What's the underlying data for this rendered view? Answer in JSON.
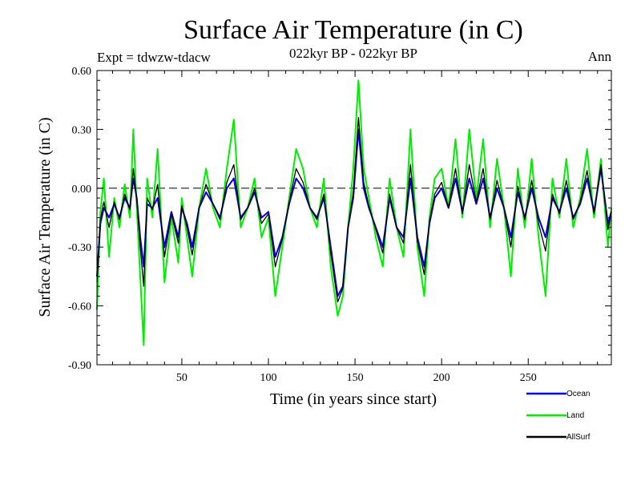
{
  "chart_data": {
    "type": "line",
    "title": "Surface Air Temperature (in C)",
    "subtitle": "022kyr BP - 022kyr BP",
    "expt_label": "Expt = tdwzw-tdacw",
    "season_label": "Ann",
    "xlabel": "Time (in years since start)",
    "ylabel": "Surface Air Temperature (in C)",
    "xlim": [
      1,
      298
    ],
    "ylim": [
      -0.9,
      0.6
    ],
    "x_ticks": [
      50,
      100,
      150,
      200,
      250
    ],
    "x_tick_labels": [
      "50",
      "100",
      "150",
      "200",
      "250"
    ],
    "y_ticks": [
      -0.9,
      -0.6,
      -0.3,
      0.0,
      0.3,
      0.6
    ],
    "y_tick_labels": [
      "-0.90",
      "-0.60",
      "-0.30",
      "0.00",
      "0.30",
      "0.60"
    ],
    "zero_line": "dashed",
    "legend_position": "bottom-right",
    "series": [
      {
        "name": "Land",
        "color": "#00ee00",
        "x": [
          1,
          3,
          5,
          8,
          11,
          14,
          17,
          20,
          22,
          24,
          26,
          28,
          30,
          33,
          36,
          40,
          44,
          48,
          50,
          53,
          56,
          60,
          64,
          68,
          72,
          76,
          80,
          84,
          88,
          92,
          96,
          100,
          104,
          108,
          112,
          116,
          120,
          124,
          128,
          132,
          136,
          140,
          143,
          146,
          149,
          152,
          155,
          158,
          162,
          166,
          170,
          174,
          178,
          182,
          186,
          190,
          193,
          196,
          200,
          204,
          208,
          212,
          216,
          220,
          224,
          228,
          232,
          236,
          240,
          244,
          248,
          252,
          256,
          260,
          264,
          268,
          272,
          276,
          280,
          284,
          288,
          292,
          296,
          298
        ],
        "values": [
          -0.62,
          -0.12,
          0.05,
          -0.35,
          -0.05,
          -0.2,
          0.02,
          -0.15,
          0.3,
          -0.1,
          -0.45,
          -0.8,
          0.05,
          -0.15,
          0.2,
          -0.48,
          -0.15,
          -0.38,
          -0.05,
          -0.25,
          -0.45,
          -0.1,
          0.1,
          -0.1,
          -0.2,
          0.1,
          0.35,
          -0.2,
          -0.1,
          0.05,
          -0.25,
          -0.15,
          -0.55,
          -0.3,
          -0.05,
          0.2,
          0.1,
          -0.1,
          -0.2,
          0.05,
          -0.4,
          -0.65,
          -0.55,
          -0.2,
          0.1,
          0.55,
          0.1,
          -0.05,
          -0.25,
          -0.4,
          0.05,
          -0.2,
          -0.35,
          0.3,
          -0.3,
          -0.55,
          -0.15,
          0.05,
          0.1,
          -0.1,
          0.25,
          -0.15,
          0.3,
          -0.05,
          0.25,
          -0.2,
          0.15,
          -0.1,
          -0.45,
          0.1,
          -0.2,
          0.15,
          -0.25,
          -0.55,
          0.05,
          -0.15,
          0.15,
          -0.2,
          -0.05,
          0.2,
          -0.15,
          0.15,
          -0.3,
          -0.1
        ]
      },
      {
        "name": "Ocean",
        "color": "#0000dd",
        "x": [
          1,
          3,
          5,
          8,
          11,
          14,
          17,
          20,
          22,
          24,
          26,
          28,
          30,
          33,
          36,
          40,
          44,
          48,
          50,
          53,
          56,
          60,
          64,
          68,
          72,
          76,
          80,
          84,
          88,
          92,
          96,
          100,
          104,
          108,
          112,
          116,
          120,
          124,
          128,
          132,
          136,
          140,
          143,
          146,
          149,
          152,
          155,
          158,
          162,
          166,
          170,
          174,
          178,
          182,
          186,
          190,
          193,
          196,
          200,
          204,
          208,
          212,
          216,
          220,
          224,
          228,
          232,
          236,
          240,
          244,
          248,
          252,
          256,
          260,
          264,
          268,
          272,
          276,
          280,
          284,
          288,
          292,
          296,
          298
        ],
        "values": [
          -0.45,
          -0.18,
          -0.1,
          -0.15,
          -0.08,
          -0.15,
          -0.05,
          -0.1,
          0.05,
          -0.05,
          -0.25,
          -0.4,
          -0.08,
          -0.1,
          -0.05,
          -0.3,
          -0.12,
          -0.25,
          -0.1,
          -0.18,
          -0.3,
          -0.1,
          -0.02,
          -0.08,
          -0.15,
          0.0,
          0.05,
          -0.15,
          -0.1,
          -0.02,
          -0.15,
          -0.12,
          -0.35,
          -0.25,
          -0.08,
          0.05,
          0.0,
          -0.1,
          -0.15,
          -0.05,
          -0.3,
          -0.55,
          -0.5,
          -0.2,
          -0.05,
          0.3,
          0.0,
          -0.1,
          -0.2,
          -0.3,
          -0.05,
          -0.2,
          -0.25,
          0.05,
          -0.25,
          -0.4,
          -0.18,
          -0.05,
          0.0,
          -0.1,
          0.05,
          -0.12,
          0.05,
          -0.08,
          0.05,
          -0.15,
          0.0,
          -0.1,
          -0.25,
          -0.02,
          -0.15,
          0.0,
          -0.15,
          -0.25,
          -0.05,
          -0.12,
          0.0,
          -0.15,
          -0.08,
          0.05,
          -0.12,
          0.1,
          -0.18,
          -0.12
        ]
      },
      {
        "name": "AllSurf",
        "color": "#000000",
        "x": [
          1,
          3,
          5,
          8,
          11,
          14,
          17,
          20,
          22,
          24,
          26,
          28,
          30,
          33,
          36,
          40,
          44,
          48,
          50,
          53,
          56,
          60,
          64,
          68,
          72,
          76,
          80,
          84,
          88,
          92,
          96,
          100,
          104,
          108,
          112,
          116,
          120,
          124,
          128,
          132,
          136,
          140,
          143,
          146,
          149,
          152,
          155,
          158,
          162,
          166,
          170,
          174,
          178,
          182,
          186,
          190,
          193,
          196,
          200,
          204,
          208,
          212,
          216,
          220,
          224,
          228,
          232,
          236,
          240,
          244,
          248,
          252,
          256,
          260,
          264,
          268,
          272,
          276,
          280,
          284,
          288,
          292,
          296,
          298
        ],
        "values": [
          -0.48,
          -0.16,
          -0.07,
          -0.2,
          -0.07,
          -0.16,
          -0.03,
          -0.11,
          0.1,
          -0.06,
          -0.3,
          -0.5,
          -0.05,
          -0.11,
          0.02,
          -0.35,
          -0.13,
          -0.28,
          -0.09,
          -0.2,
          -0.34,
          -0.1,
          0.02,
          -0.08,
          -0.16,
          0.03,
          0.12,
          -0.16,
          -0.1,
          0.0,
          -0.18,
          -0.13,
          -0.4,
          -0.26,
          -0.07,
          0.1,
          0.03,
          -0.1,
          -0.16,
          -0.03,
          -0.33,
          -0.58,
          -0.51,
          -0.2,
          -0.02,
          0.36,
          0.03,
          -0.09,
          -0.21,
          -0.33,
          -0.03,
          -0.2,
          -0.28,
          0.12,
          -0.27,
          -0.44,
          -0.17,
          -0.03,
          0.03,
          -0.1,
          0.1,
          -0.13,
          0.12,
          -0.07,
          0.1,
          -0.16,
          0.04,
          -0.1,
          -0.3,
          0.01,
          -0.16,
          0.04,
          -0.18,
          -0.32,
          -0.03,
          -0.13,
          0.04,
          -0.16,
          -0.07,
          0.09,
          -0.13,
          0.12,
          -0.21,
          -0.12
        ]
      }
    ]
  }
}
